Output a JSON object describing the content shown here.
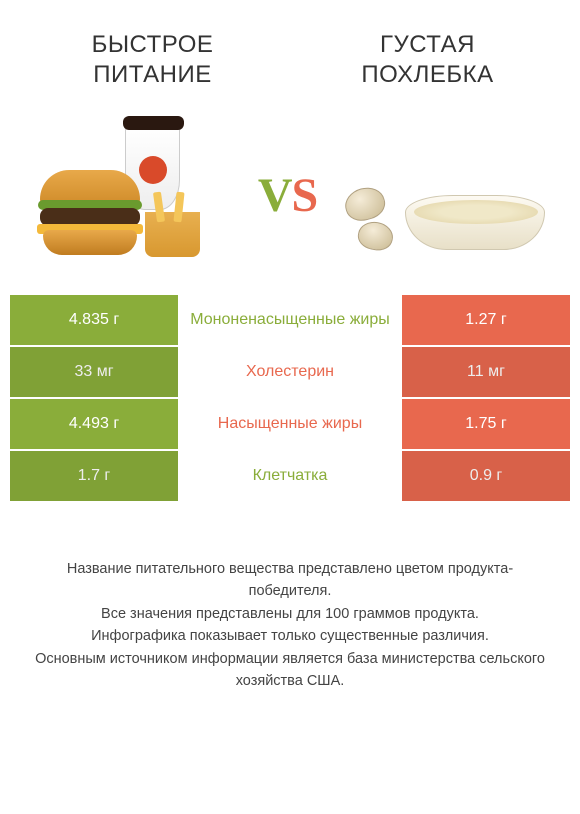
{
  "colors": {
    "left": "#8aad3a",
    "right": "#e8684e",
    "text": "#444444",
    "bg": "#ffffff"
  },
  "titles": {
    "left": "БЫСТРОЕ ПИТАНИЕ",
    "right": "ГУСТАЯ ПОХЛЕБКА"
  },
  "vs": {
    "v": "V",
    "s": "S"
  },
  "rows": [
    {
      "left": "4.835 г",
      "label": "Мононенасыщенные жиры",
      "right": "1.27 г",
      "winner": "left"
    },
    {
      "left": "33 мг",
      "label": "Холестерин",
      "right": "11 мг",
      "winner": "right"
    },
    {
      "left": "4.493 г",
      "label": "Насыщенные жиры",
      "right": "1.75 г",
      "winner": "right"
    },
    {
      "left": "1.7 г",
      "label": "Клетчатка",
      "right": "0.9 г",
      "winner": "left"
    }
  ],
  "footer": {
    "l1": "Название питательного вещества представлено цветом продукта-победителя.",
    "l2": "Все значения представлены для 100 граммов продукта.",
    "l3": "Инфографика показывает только существенные различия.",
    "l4": "Основным источником информации является база министерства сельского хозяйства США."
  }
}
